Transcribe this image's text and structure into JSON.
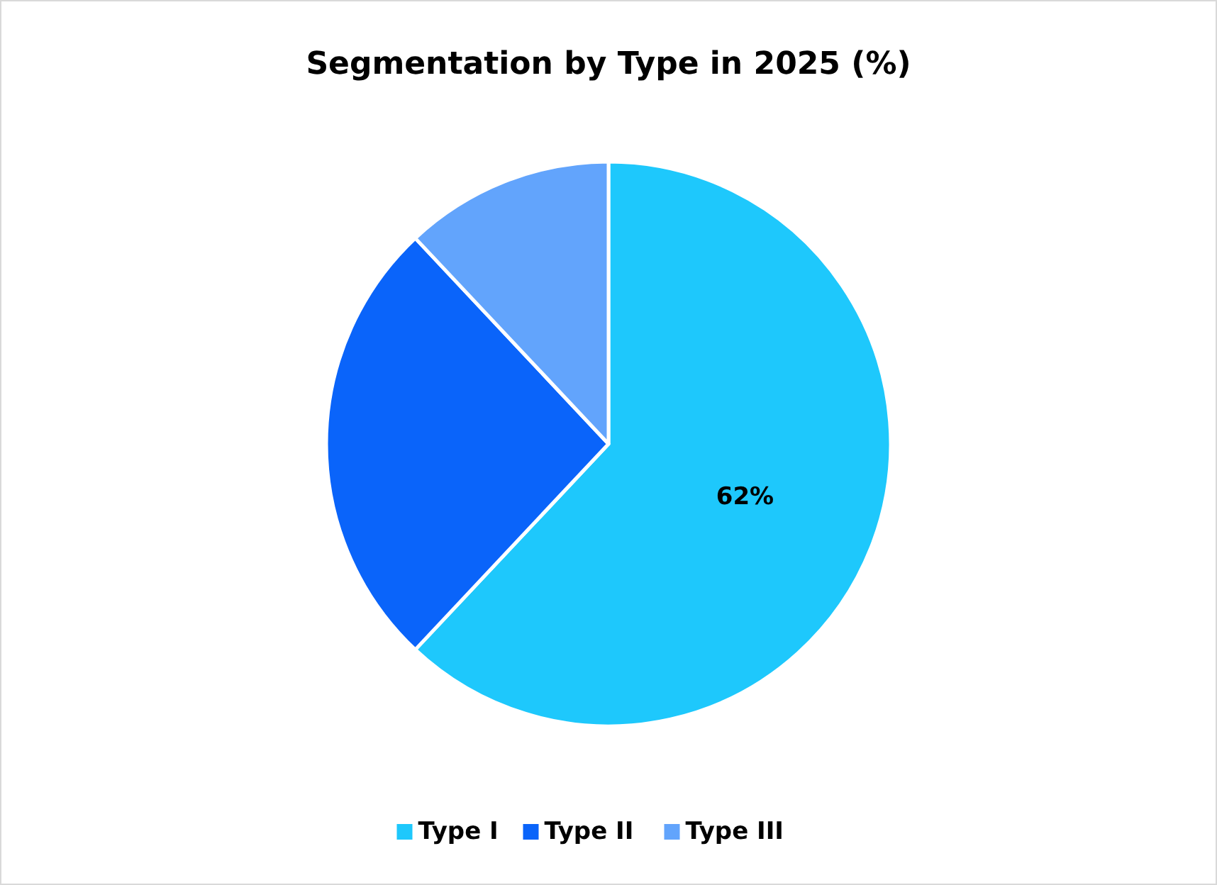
{
  "chart_data": {
    "type": "pie",
    "title": "Segmentation by Type in 2025 (%)",
    "categories": [
      "Type I",
      "Type II",
      "Type III"
    ],
    "values": [
      62,
      26,
      12
    ],
    "colors": [
      "#1ec8fc",
      "#0a64fa",
      "#62a4fc"
    ],
    "value_labels": [
      "62%",
      null,
      null
    ],
    "legend": "bottom"
  }
}
